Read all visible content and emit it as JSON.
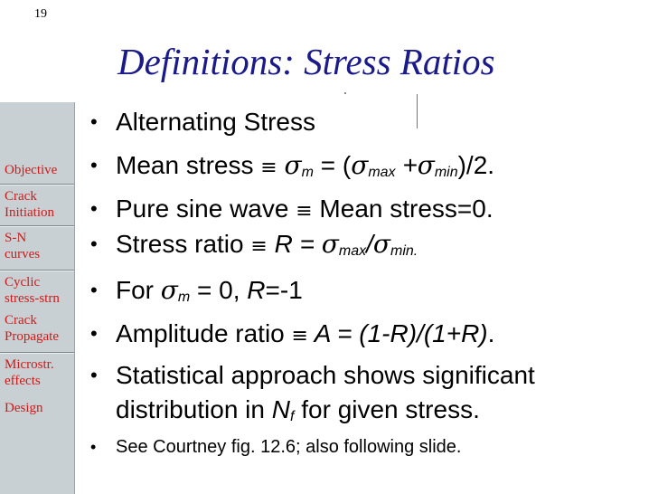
{
  "slide": {
    "number": "19",
    "title": "Definitions: Stress Ratios"
  },
  "sidebar": {
    "items": [
      {
        "label": "Objective"
      },
      {
        "label": "Crack Initiation"
      },
      {
        "label": "S-N curves"
      },
      {
        "label": "Cyclic stress-strn"
      },
      {
        "label": "Crack Propagate"
      },
      {
        "label": "Microstr. effects"
      },
      {
        "label": "Design"
      }
    ]
  },
  "bullets": {
    "marker": "•",
    "b1": {
      "text": "Alternating Stress"
    },
    "b2": {
      "prefix": "Mean stress ",
      "equiv": "≡",
      "sigma": "σ",
      "sub_m": "m",
      "mid": " = (",
      "sub_max": "max",
      "plus": " +",
      "sub_min": "min",
      "end": ")/2."
    },
    "b3": {
      "text": "Pure sine wave ",
      "equiv": "≡",
      "rest": " Mean stress=0."
    },
    "b4": {
      "prefix": "Stress ratio ",
      "equiv": "≡",
      "r": " R = ",
      "sigma": "σ",
      "sub_max": "max",
      "slash": "/",
      "sub_min": "min."
    },
    "b5": {
      "prefix": "For ",
      "sigma": "σ",
      "sub_m": "m",
      "mid": " = 0, ",
      "r": "R",
      "end": "=-1"
    },
    "b6": {
      "prefix": "Amplitude ratio ",
      "equiv": "≡",
      "formula": " A = (1-R)/(1+R)",
      "end": "."
    },
    "b7": {
      "line1": "Statistical approach shows significant",
      "line2_a": "distribution in ",
      "n": "N",
      "sub_f": "f",
      "line2_b": " for given stress."
    },
    "b8": {
      "text": "See Courtney fig. 12.6; also following slide."
    }
  }
}
